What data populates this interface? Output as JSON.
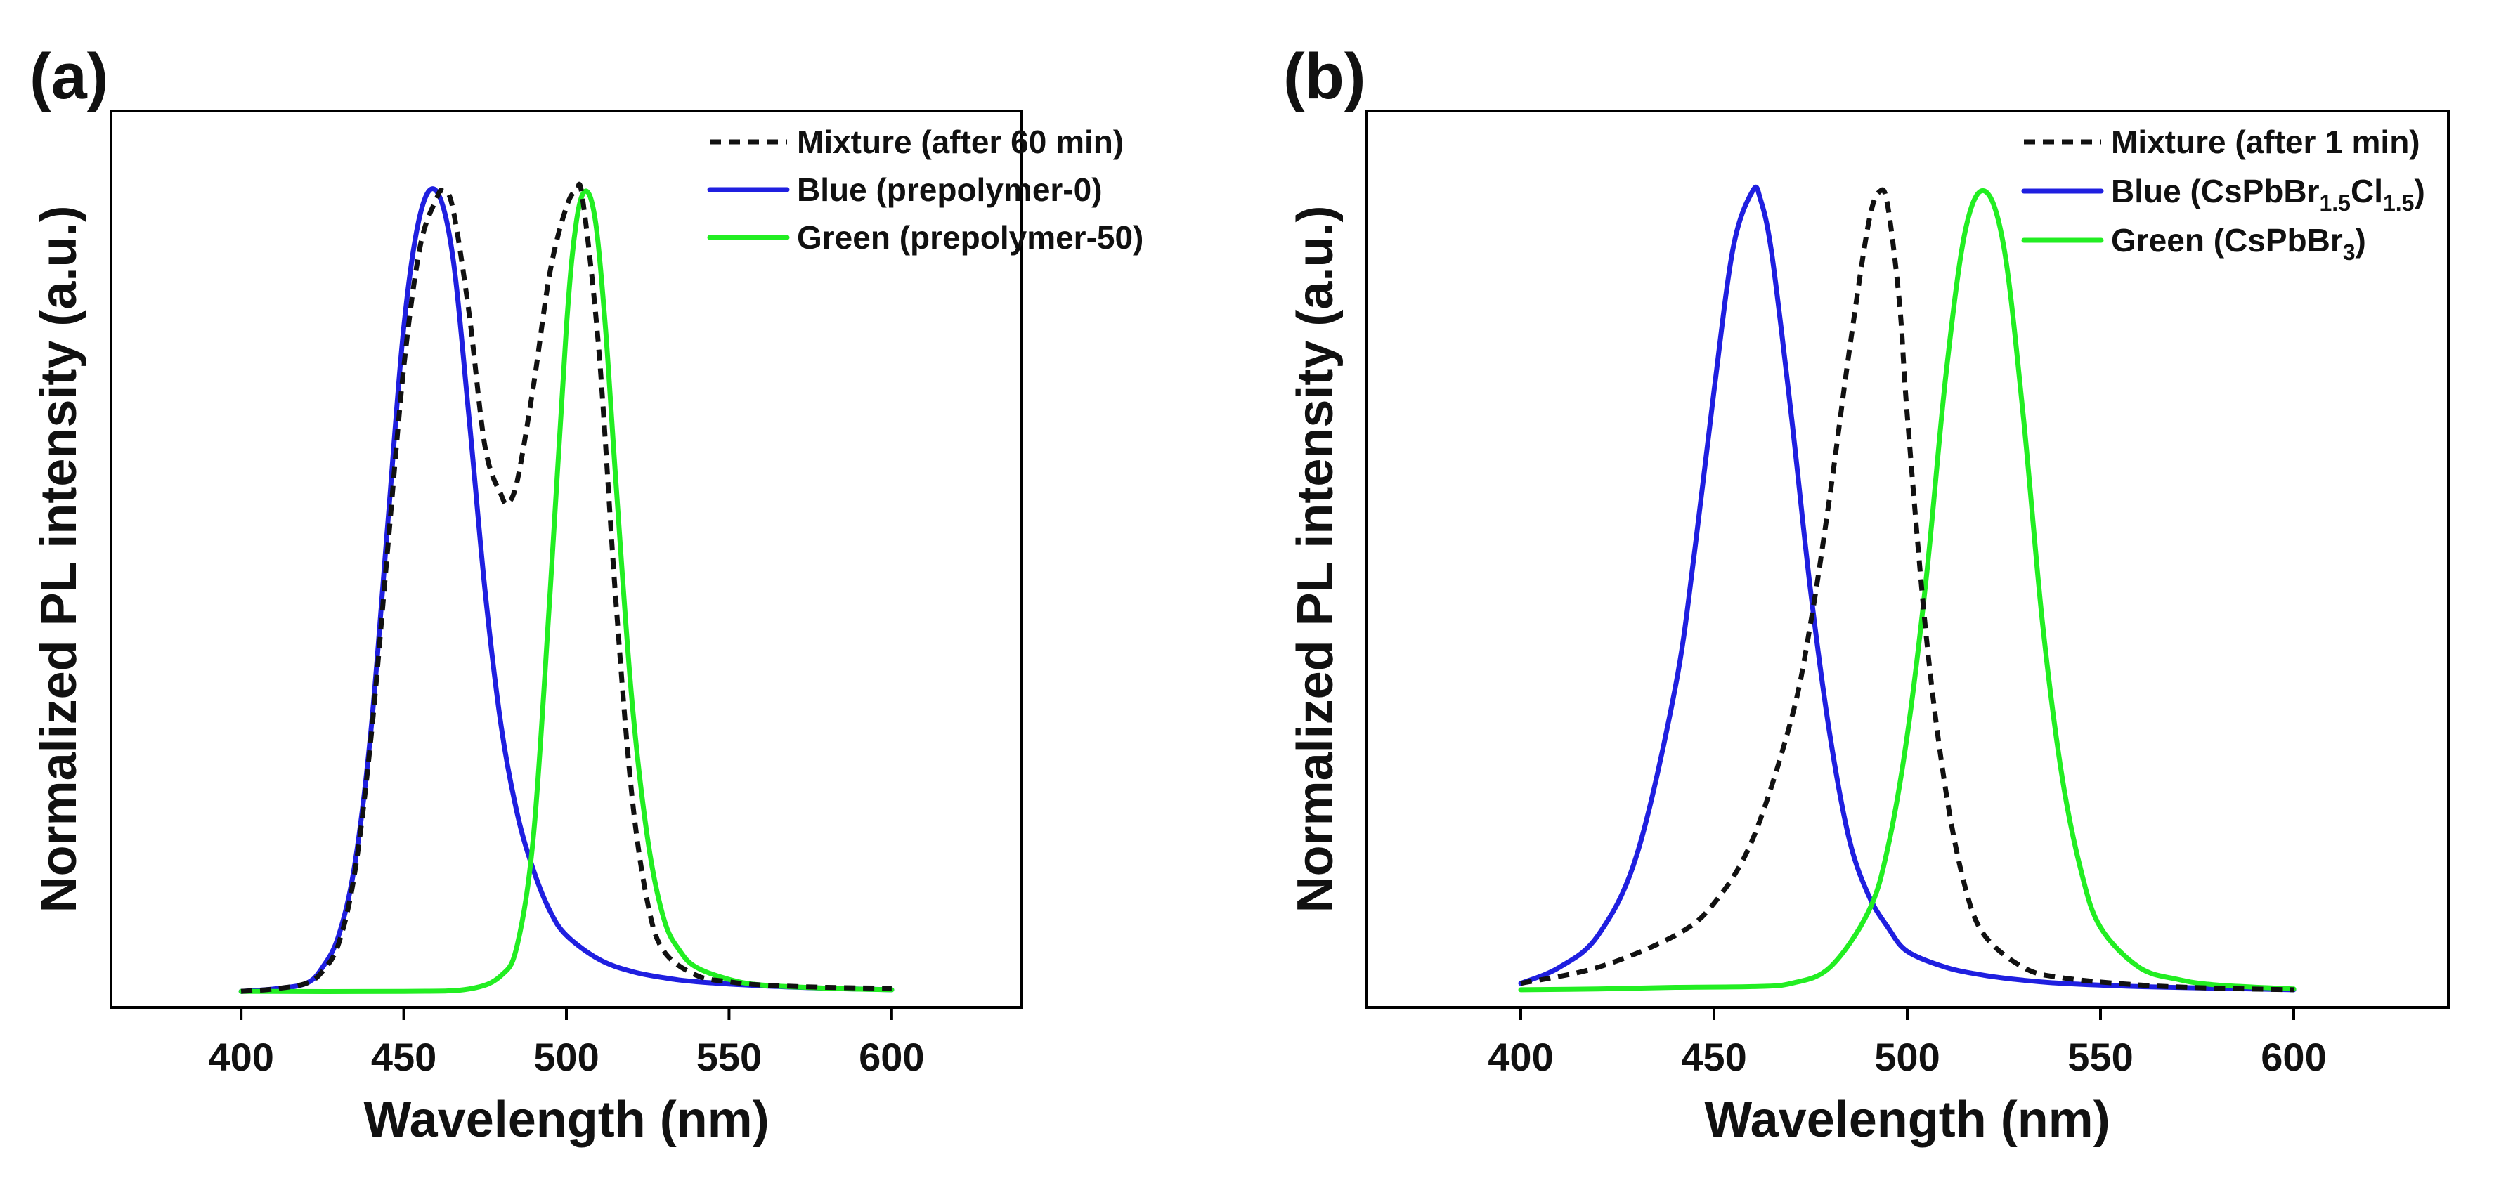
{
  "colors": {
    "blue": "#1f1fe0",
    "green": "#22ee22",
    "mixture": "#111111"
  },
  "chart_data": [
    {
      "id": "a",
      "panel_label": "(a)",
      "type": "line",
      "title": "",
      "xlabel": "Wavelength (nm)",
      "ylabel": "Normalized PL intensity (a.u.)",
      "xlim": [
        360,
        640
      ],
      "ylim": [
        -0.02,
        1.1
      ],
      "xticks": [
        400,
        450,
        500,
        550,
        600
      ],
      "xtick_labels": [
        "400",
        "450",
        "500",
        "550",
        "600"
      ],
      "grid": false,
      "legend_position": "top-right",
      "series": [
        {
          "name": "Mixture (after 60 min)",
          "label_parts": [
            [
              "Mixture (after 60 min)",
              ""
            ]
          ],
          "color_key": "mixture",
          "dashed": true,
          "x": [
            400,
            410,
            420,
            425,
            430,
            435,
            440,
            445,
            450,
            455,
            460,
            462,
            465,
            470,
            475,
            480,
            482,
            485,
            490,
            495,
            500,
            503,
            505,
            510,
            515,
            520,
            525,
            530,
            540,
            550,
            560,
            580,
            600
          ],
          "y": [
            0.0,
            0.003,
            0.01,
            0.025,
            0.06,
            0.15,
            0.32,
            0.55,
            0.78,
            0.93,
            0.99,
            1.0,
            0.98,
            0.85,
            0.68,
            0.62,
            0.61,
            0.64,
            0.76,
            0.9,
            0.98,
            1.0,
            0.99,
            0.8,
            0.5,
            0.25,
            0.11,
            0.05,
            0.02,
            0.012,
            0.008,
            0.005,
            0.004
          ]
        },
        {
          "name": "Blue (prepolymer-0)",
          "label_parts": [
            [
              "Blue (prepolymer-0)",
              ""
            ]
          ],
          "color_key": "blue",
          "dashed": false,
          "x": [
            400,
            410,
            420,
            425,
            430,
            435,
            440,
            445,
            450,
            455,
            460,
            465,
            470,
            475,
            480,
            485,
            490,
            495,
            500,
            510,
            520,
            530,
            540,
            560,
            580,
            600
          ],
          "y": [
            0.0,
            0.003,
            0.01,
            0.03,
            0.07,
            0.16,
            0.33,
            0.58,
            0.83,
            0.97,
            1.0,
            0.92,
            0.72,
            0.5,
            0.33,
            0.22,
            0.15,
            0.1,
            0.07,
            0.04,
            0.025,
            0.017,
            0.012,
            0.007,
            0.004,
            0.002
          ]
        },
        {
          "name": "Green (prepolymer-50)",
          "label_parts": [
            [
              "Green (prepolymer-50)",
              ""
            ]
          ],
          "color_key": "green",
          "dashed": false,
          "x": [
            400,
            450,
            470,
            480,
            485,
            490,
            495,
            500,
            503,
            506,
            509,
            512,
            515,
            520,
            525,
            530,
            535,
            540,
            550,
            560,
            580,
            600
          ],
          "y": [
            0.0,
            0.0,
            0.003,
            0.02,
            0.06,
            0.2,
            0.5,
            0.83,
            0.96,
            1.0,
            0.96,
            0.83,
            0.65,
            0.37,
            0.19,
            0.09,
            0.05,
            0.03,
            0.015,
            0.008,
            0.004,
            0.002
          ]
        }
      ]
    },
    {
      "id": "b",
      "panel_label": "(b)",
      "type": "line",
      "title": "",
      "xlabel": "Wavelength (nm)",
      "ylabel": "Normalized PL intensity (a.u.)",
      "xlim": [
        360,
        640
      ],
      "ylim": [
        -0.02,
        1.1
      ],
      "xticks": [
        400,
        450,
        500,
        550,
        600
      ],
      "xtick_labels": [
        "400",
        "450",
        "500",
        "550",
        "600"
      ],
      "grid": false,
      "legend_position": "top-right",
      "series": [
        {
          "name": "Mixture (after 1 min)",
          "label_parts": [
            [
              "Mixture (after 1 min)",
              ""
            ]
          ],
          "color_key": "mixture",
          "dashed": true,
          "x": [
            400,
            420,
            440,
            450,
            460,
            470,
            475,
            480,
            485,
            490,
            493,
            495,
            498,
            500,
            505,
            510,
            515,
            520,
            530,
            540,
            560,
            580,
            600
          ],
          "y": [
            0.01,
            0.03,
            0.07,
            0.11,
            0.19,
            0.34,
            0.46,
            0.62,
            0.8,
            0.96,
            1.0,
            0.98,
            0.86,
            0.72,
            0.44,
            0.25,
            0.13,
            0.07,
            0.03,
            0.017,
            0.008,
            0.004,
            0.002
          ]
        },
        {
          "name": "Blue (CsPbBr1.5Cl1.5)",
          "label_parts": [
            [
              "Blue (CsPbBr",
              ""
            ],
            [
              "1.5",
              "sub"
            ],
            [
              "Cl",
              ""
            ],
            [
              "1.5",
              "sub"
            ],
            [
              ")",
              ""
            ]
          ],
          "color_key": "blue",
          "dashed": false,
          "x": [
            400,
            410,
            420,
            430,
            440,
            445,
            450,
            455,
            460,
            462,
            465,
            470,
            475,
            480,
            485,
            490,
            495,
            500,
            510,
            520,
            530,
            540,
            560,
            580,
            600
          ],
          "y": [
            0.01,
            0.03,
            0.07,
            0.17,
            0.38,
            0.55,
            0.75,
            0.93,
            1.0,
            0.99,
            0.92,
            0.72,
            0.5,
            0.32,
            0.19,
            0.12,
            0.08,
            0.05,
            0.03,
            0.02,
            0.014,
            0.01,
            0.006,
            0.004,
            0.002
          ]
        },
        {
          "name": "Green (CsPbBr3)",
          "label_parts": [
            [
              "Green (CsPbBr",
              ""
            ],
            [
              "3",
              "sub"
            ],
            [
              ")",
              ""
            ]
          ],
          "color_key": "green",
          "dashed": false,
          "x": [
            400,
            420,
            440,
            460,
            470,
            480,
            490,
            495,
            500,
            505,
            510,
            515,
            520,
            525,
            530,
            535,
            540,
            545,
            550,
            560,
            570,
            580,
            600
          ],
          "y": [
            0.002,
            0.003,
            0.005,
            0.006,
            0.01,
            0.03,
            0.1,
            0.18,
            0.32,
            0.52,
            0.77,
            0.95,
            1.0,
            0.93,
            0.72,
            0.46,
            0.27,
            0.15,
            0.08,
            0.03,
            0.015,
            0.008,
            0.003
          ]
        }
      ]
    }
  ]
}
